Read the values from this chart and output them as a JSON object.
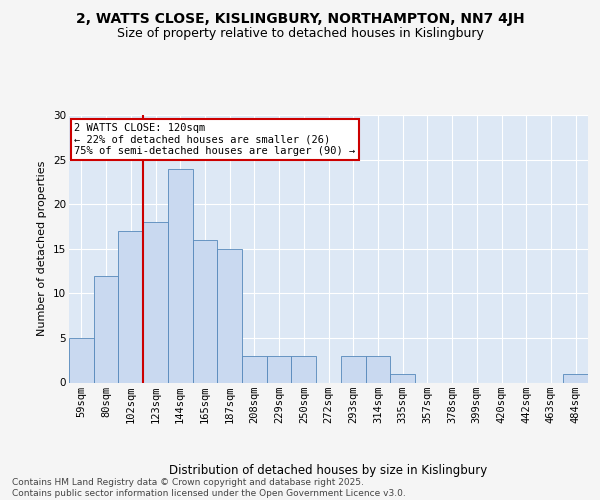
{
  "title": "2, WATTS CLOSE, KISLINGBURY, NORTHAMPTON, NN7 4JH",
  "subtitle": "Size of property relative to detached houses in Kislingbury",
  "xlabel": "Distribution of detached houses by size in Kislingbury",
  "ylabel": "Number of detached properties",
  "categories": [
    "59sqm",
    "80sqm",
    "102sqm",
    "123sqm",
    "144sqm",
    "165sqm",
    "187sqm",
    "208sqm",
    "229sqm",
    "250sqm",
    "272sqm",
    "293sqm",
    "314sqm",
    "335sqm",
    "357sqm",
    "378sqm",
    "399sqm",
    "420sqm",
    "442sqm",
    "463sqm",
    "484sqm"
  ],
  "values": [
    5,
    12,
    17,
    18,
    24,
    16,
    15,
    3,
    3,
    3,
    0,
    3,
    3,
    1,
    0,
    0,
    0,
    0,
    0,
    0,
    1
  ],
  "bar_color": "#c9d9f0",
  "bar_edge_color": "#5588bb",
  "background_color": "#dde8f5",
  "grid_color": "#ffffff",
  "vline_color": "#cc0000",
  "vline_x": 2.5,
  "annotation_text": "2 WATTS CLOSE: 120sqm\n← 22% of detached houses are smaller (26)\n75% of semi-detached houses are larger (90) →",
  "annotation_box_color": "#ffffff",
  "annotation_box_edge_color": "#cc0000",
  "ylim": [
    0,
    30
  ],
  "yticks": [
    0,
    5,
    10,
    15,
    20,
    25,
    30
  ],
  "footer": "Contains HM Land Registry data © Crown copyright and database right 2025.\nContains public sector information licensed under the Open Government Licence v3.0.",
  "title_fontsize": 10,
  "subtitle_fontsize": 9,
  "xlabel_fontsize": 8.5,
  "ylabel_fontsize": 8,
  "tick_fontsize": 7.5,
  "annotation_fontsize": 7.5,
  "footer_fontsize": 6.5
}
